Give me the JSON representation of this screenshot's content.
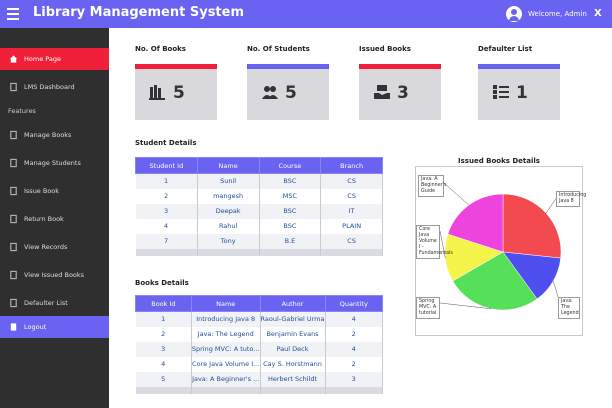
{
  "header": {
    "title": "Library Management System",
    "welcome": "Welcome, Admin",
    "close": "X",
    "color": "#6a62f0"
  },
  "sidebar": {
    "items": [
      {
        "label": "Home Page",
        "icon": "home-icon"
      },
      {
        "label": "LMS Dashboard",
        "icon": "dashboard-icon"
      }
    ],
    "section": "Features",
    "features": [
      {
        "label": "Manage Books",
        "icon": "book-icon"
      },
      {
        "label": "Manage Students",
        "icon": "student-icon"
      },
      {
        "label": "Issue Book",
        "icon": "issue-icon"
      },
      {
        "label": "Return Book",
        "icon": "return-icon"
      },
      {
        "label": "View Records",
        "icon": "records-icon"
      },
      {
        "label": "View Issued Books",
        "icon": "issued-icon"
      },
      {
        "label": "Defaulter List",
        "icon": "defaulter-icon"
      }
    ],
    "logout": "Logout"
  },
  "cards": [
    {
      "title": "No. Of Books",
      "value": "5",
      "accent": "#f0203a",
      "icon": "books-icon"
    },
    {
      "title": "No. Of Students",
      "value": "5",
      "accent": "#6a62f0",
      "icon": "students-icon"
    },
    {
      "title": "Issued Books",
      "value": "3",
      "accent": "#f0203a",
      "icon": "issued-books-icon"
    },
    {
      "title": "Defaulter List",
      "value": "1",
      "accent": "#6a62f0",
      "icon": "defaulter-list-icon"
    }
  ],
  "student_details": {
    "title": "Student Details",
    "headers": [
      "Student Id",
      "Name",
      "Course",
      "Branch"
    ],
    "rows": [
      [
        "1",
        "Sunil",
        "BSC",
        "CS"
      ],
      [
        "2",
        "mangesh",
        "MSC",
        "CS"
      ],
      [
        "3",
        "Deepak",
        "BSC",
        "IT"
      ],
      [
        "4",
        "Rahul",
        "BSC",
        "PLAIN"
      ],
      [
        "7",
        "Tony",
        "B.E",
        "CS"
      ]
    ]
  },
  "books_details": {
    "title": "Books Details",
    "headers": [
      "Book Id",
      "Name",
      "Author",
      "Quantity"
    ],
    "rows": [
      [
        "1",
        "Introducing Java 8",
        "Raoul-Gabriel Urma",
        "4"
      ],
      [
        "2",
        "Java: The Legend",
        "Benjamin Evans",
        "2"
      ],
      [
        "3",
        "Spring MVC: A tuto...",
        "Paul Deck",
        "4"
      ],
      [
        "4",
        "Core Java Volume I...",
        "Cay S. Horstmann",
        "2"
      ],
      [
        "5",
        "Java: A Beginner's ...",
        "Herbert Schildt",
        "3"
      ]
    ]
  },
  "chart_data": {
    "type": "pie",
    "title": "Issued Books Details",
    "slices": [
      {
        "label": "Introducing Java 8",
        "value": 4,
        "color": "#f24a4f"
      },
      {
        "label": "Java: The Legend",
        "value": 2,
        "color": "#4f4ff0"
      },
      {
        "label": "Spring MVC: A tutorial",
        "value": 4,
        "color": "#56e05a"
      },
      {
        "label": "Core Java Volume I - Fundamentals",
        "value": 2,
        "color": "#f4f44a"
      },
      {
        "label": "Java: A Beginner's Guide",
        "value": 3,
        "color": "#ee44dd"
      }
    ],
    "callouts": [
      {
        "text": "Java: A Beginner's Guide"
      },
      {
        "text": "Introducing Java 8"
      },
      {
        "text": "Core Java Volume I - Fundamentals"
      },
      {
        "text": "Spring MVC: A tutorial"
      },
      {
        "text": "Java: The Legend"
      }
    ]
  }
}
